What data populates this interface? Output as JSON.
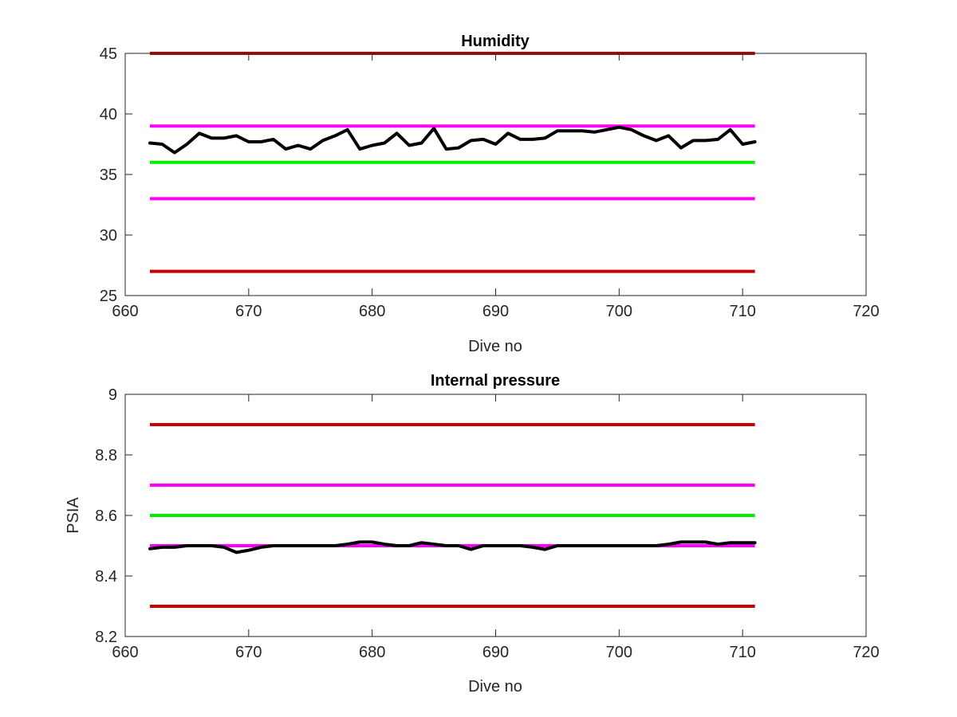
{
  "chart_data": [
    {
      "type": "line",
      "title": "Humidity",
      "xlabel": "Dive no",
      "ylabel": "",
      "xlim": [
        660,
        720
      ],
      "ylim": [
        25,
        45
      ],
      "xticks": [
        660,
        670,
        680,
        690,
        700,
        710,
        720
      ],
      "yticks": [
        25,
        30,
        35,
        40,
        45
      ],
      "grid": false,
      "series": [
        {
          "color": "#000000",
          "x": [
            662,
            663,
            664,
            665,
            666,
            667,
            668,
            669,
            670,
            671,
            672,
            673,
            674,
            675,
            676,
            677,
            678,
            679,
            680,
            681,
            682,
            683,
            684,
            685,
            686,
            687,
            688,
            689,
            690,
            691,
            692,
            693,
            694,
            695,
            696,
            697,
            698,
            699,
            700,
            701,
            702,
            703,
            704,
            705,
            706,
            707,
            708,
            709,
            710,
            711
          ],
          "values": [
            37.6,
            37.5,
            36.8,
            37.5,
            38.4,
            38.0,
            38.0,
            38.2,
            37.7,
            37.7,
            37.9,
            37.1,
            37.4,
            37.1,
            37.8,
            38.2,
            38.7,
            37.1,
            37.4,
            37.6,
            38.4,
            37.4,
            37.6,
            38.8,
            37.1,
            37.2,
            37.8,
            37.9,
            37.5,
            38.4,
            37.9,
            37.9,
            38.0,
            38.6,
            38.6,
            38.6,
            38.5,
            38.7,
            38.9,
            38.7,
            38.2,
            37.8,
            38.2,
            37.2,
            37.8,
            37.8,
            37.9,
            38.7,
            37.5,
            37.7
          ]
        }
      ],
      "limit_lines": [
        {
          "y": 45,
          "color": "#cc0000"
        },
        {
          "y": 39,
          "color": "#ff00ff"
        },
        {
          "y": 36,
          "color": "#00ee00"
        },
        {
          "y": 33,
          "color": "#ff00ff"
        },
        {
          "y": 27,
          "color": "#cc0000"
        }
      ],
      "limit_x": [
        662,
        711
      ]
    },
    {
      "type": "line",
      "title": "Internal pressure",
      "xlabel": "Dive no",
      "ylabel": "PSIA",
      "xlim": [
        660,
        720
      ],
      "ylim": [
        8.2,
        9
      ],
      "xticks": [
        660,
        670,
        680,
        690,
        700,
        710,
        720
      ],
      "yticks": [
        8.2,
        8.4,
        8.6,
        8.8,
        9
      ],
      "grid": false,
      "series": [
        {
          "color": "#000000",
          "x": [
            662,
            663,
            664,
            665,
            666,
            667,
            668,
            669,
            670,
            671,
            672,
            673,
            674,
            675,
            676,
            677,
            678,
            679,
            680,
            681,
            682,
            683,
            684,
            685,
            686,
            687,
            688,
            689,
            690,
            691,
            692,
            693,
            694,
            695,
            696,
            697,
            698,
            699,
            700,
            701,
            702,
            703,
            704,
            705,
            706,
            707,
            708,
            709,
            710,
            711
          ],
          "values": [
            8.49,
            8.495,
            8.495,
            8.5,
            8.5,
            8.5,
            8.495,
            8.478,
            8.485,
            8.495,
            8.5,
            8.5,
            8.5,
            8.5,
            8.5,
            8.5,
            8.505,
            8.512,
            8.512,
            8.505,
            8.5,
            8.5,
            8.51,
            8.505,
            8.5,
            8.5,
            8.488,
            8.5,
            8.5,
            8.5,
            8.5,
            8.495,
            8.488,
            8.5,
            8.5,
            8.5,
            8.5,
            8.5,
            8.5,
            8.5,
            8.5,
            8.5,
            8.505,
            8.512,
            8.512,
            8.512,
            8.505,
            8.51,
            8.51,
            8.51
          ]
        }
      ],
      "limit_lines": [
        {
          "y": 8.9,
          "color": "#cc0000"
        },
        {
          "y": 8.7,
          "color": "#ff00ff"
        },
        {
          "y": 8.6,
          "color": "#00ee00"
        },
        {
          "y": 8.5,
          "color": "#ff00ff"
        },
        {
          "y": 8.3,
          "color": "#cc0000"
        }
      ],
      "limit_x": [
        662,
        711
      ]
    }
  ]
}
